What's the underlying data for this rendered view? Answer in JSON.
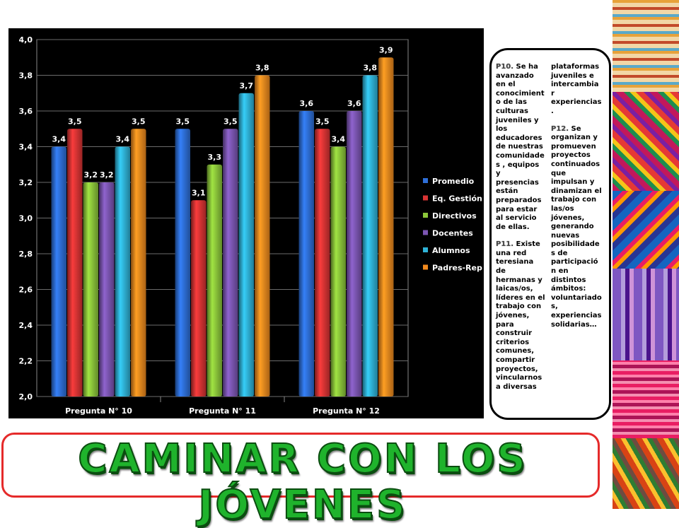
{
  "chart_data": {
    "type": "bar",
    "categories": [
      "Pregunta N° 10",
      "Pregunta N° 11",
      "Pregunta N° 12"
    ],
    "series": [
      {
        "name": "Promedio",
        "values": [
          3.4,
          3.5,
          3.6
        ],
        "labels": [
          "3,4",
          "3,5",
          "3,6"
        ],
        "color": "#2e6fd8"
      },
      {
        "name": "Eq. Gestión",
        "values": [
          3.5,
          3.1,
          3.5
        ],
        "labels": [
          "3,5",
          "3,1",
          "3,5"
        ],
        "color": "#d93434"
      },
      {
        "name": "Directivos",
        "values": [
          3.2,
          3.3,
          3.4
        ],
        "labels": [
          "3,2",
          "3,3",
          "3,4"
        ],
        "color": "#8cc63a"
      },
      {
        "name": "Docentes",
        "values": [
          3.2,
          3.5,
          3.6
        ],
        "labels": [
          "3,2",
          "3,5",
          "3,6"
        ],
        "color": "#7c56b3"
      },
      {
        "name": "Alumnos",
        "values": [
          3.4,
          3.7,
          3.8
        ],
        "labels": [
          "3,4",
          "3,7",
          "3,8"
        ],
        "color": "#2fb3d8"
      },
      {
        "name": "Padres-Rep",
        "values": [
          3.5,
          3.8,
          3.9
        ],
        "labels": [
          "3,5",
          "3,8",
          "3,9"
        ],
        "color": "#f28a1e"
      }
    ],
    "ylim": [
      2.0,
      4.0
    ],
    "yticks": [
      "2,0",
      "2,2",
      "2,4",
      "2,6",
      "2,8",
      "3,0",
      "3,2",
      "3,4",
      "3,6",
      "3,8",
      "4,0"
    ],
    "grid": true,
    "legend_position": "right",
    "background": "#000000"
  },
  "text_panel": {
    "left_column": [
      {
        "code": "P10.",
        "text": " Se ha avanzado en el conocimiento de las culturas juveniles y los educadores de nuestras comunidades , equipos y presencias están preparados para estar al servicio de ellas."
      },
      {
        "code": "P11.",
        "text": " Existe una red teresiana de hermanas y laicas/os, líderes en el trabajo con jóvenes, para construir criterios comunes, compartir proyectos, vincularnos a diversas"
      }
    ],
    "right_column": [
      {
        "code": "",
        "text": "plataformas juveniles e intercambiar experiencias."
      },
      {
        "code": "P12.",
        "text": " Se organizan y promueven proyectos continuados que impulsan y dinamizan el trabajo con las/os jóvenes, generando nuevas posibilidades de participación en distintos ámbitos: voluntariado s, experiencias solidarias…"
      }
    ]
  },
  "banner": {
    "title": "CAMINAR CON LOS JÓVENES",
    "color": "#1fb32c",
    "border_color": "#e52a2a"
  }
}
